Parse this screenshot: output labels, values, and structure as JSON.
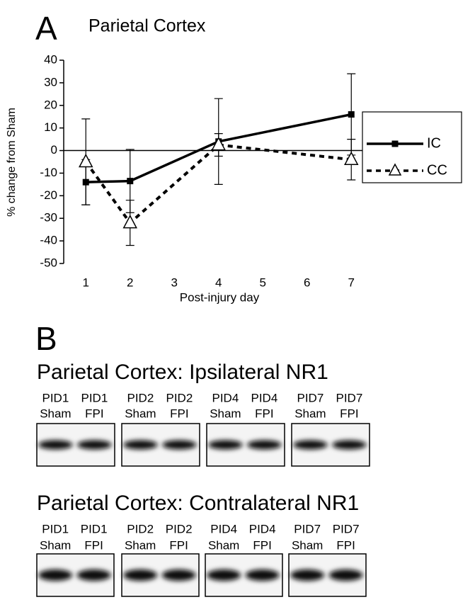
{
  "chart_data": {
    "type": "line",
    "panel_label": "A",
    "title": "Parietal Cortex",
    "x_label": "Post-injury day",
    "y_label": "% change from Sham",
    "xlim": [
      0.5,
      7.5
    ],
    "xticks": [
      1,
      2,
      3,
      4,
      5,
      6,
      7
    ],
    "ylim": [
      -50,
      40
    ],
    "yticks": [
      -50,
      -40,
      -30,
      -20,
      -10,
      0,
      10,
      20,
      30,
      40
    ],
    "legend": "right",
    "series": [
      {
        "name": "IC",
        "color": "#000000",
        "line_style": "solid",
        "marker": "square",
        "x": [
          1,
          2,
          4,
          7
        ],
        "values": [
          -14,
          -13.5,
          4,
          16
        ],
        "error": [
          10,
          14,
          19,
          18
        ]
      },
      {
        "name": "CC",
        "color": "#000000",
        "line_style": "dashed",
        "marker": "triangle",
        "x": [
          1,
          2,
          4,
          7
        ],
        "values": [
          -5,
          -32,
          2.5,
          -4
        ],
        "error": [
          19,
          10,
          5,
          9
        ]
      }
    ]
  },
  "panel_b": {
    "label": "B",
    "blots": [
      {
        "title": "Parietal Cortex: Ipsilateral NR1",
        "lanes": [
          [
            "PID1",
            "Sham"
          ],
          [
            "PID1",
            "FPI"
          ],
          [
            "PID2",
            "Sham"
          ],
          [
            "PID2",
            "FPI"
          ],
          [
            "PID4",
            "Sham"
          ],
          [
            "PID4",
            "FPI"
          ],
          [
            "PID7",
            "Sham"
          ],
          [
            "PID7",
            "FPI"
          ]
        ]
      },
      {
        "title": "Parietal Cortex: Contralateral NR1",
        "lanes": [
          [
            "PID1",
            "Sham"
          ],
          [
            "PID1",
            "FPI"
          ],
          [
            "PID2",
            "Sham"
          ],
          [
            "PID2",
            "FPI"
          ],
          [
            "PID4",
            "Sham"
          ],
          [
            "PID4",
            "FPI"
          ],
          [
            "PID7",
            "Sham"
          ],
          [
            "PID7",
            "FPI"
          ]
        ]
      }
    ]
  }
}
